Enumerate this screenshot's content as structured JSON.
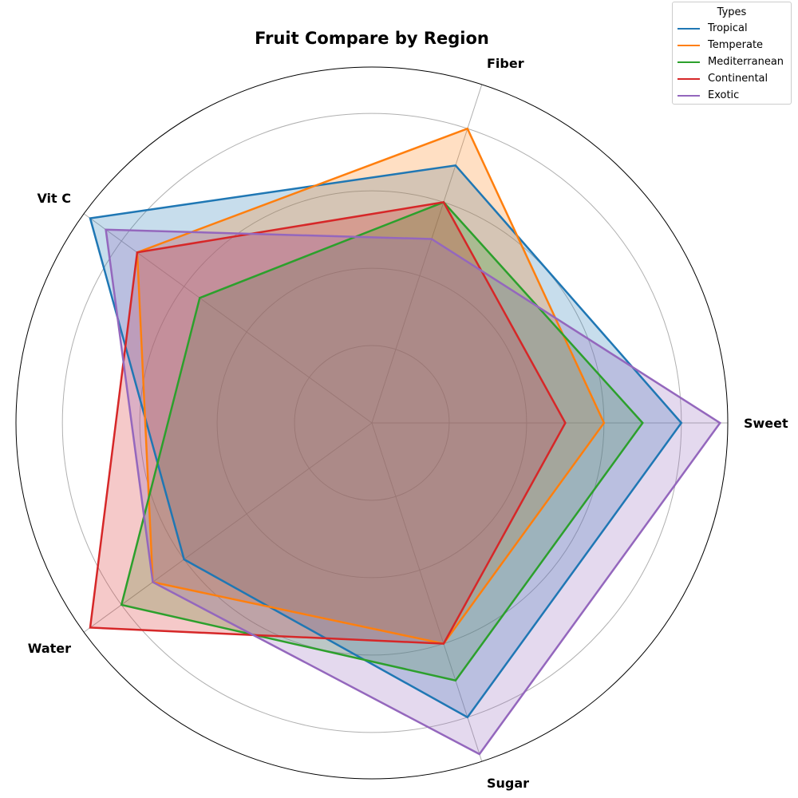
{
  "chart_data": {
    "type": "radar",
    "title": "Fruit Compare by Region",
    "axes": [
      "Sweet",
      "Fiber",
      "Vit C",
      "Water",
      "Sugar"
    ],
    "rmax": 9.2,
    "rings": [
      2,
      4,
      6,
      8
    ],
    "grid": true,
    "legend": {
      "title": "Types",
      "placement": "top-right"
    },
    "series": [
      {
        "name": "Tropical",
        "color": "#1f77b4",
        "values": [
          8.0,
          7.0,
          9.0,
          6.0,
          8.0
        ]
      },
      {
        "name": "Temperate",
        "color": "#ff7f0e",
        "values": [
          6.0,
          8.0,
          7.5,
          7.0,
          6.0
        ]
      },
      {
        "name": "Mediterranean",
        "color": "#2ca02c",
        "values": [
          7.0,
          6.0,
          5.5,
          8.0,
          7.0
        ]
      },
      {
        "name": "Continental",
        "color": "#d62728",
        "values": [
          5.0,
          6.0,
          7.5,
          9.0,
          6.0
        ]
      },
      {
        "name": "Exotic",
        "color": "#9467bd",
        "values": [
          9.0,
          5.0,
          8.5,
          7.0,
          9.0
        ]
      }
    ]
  }
}
